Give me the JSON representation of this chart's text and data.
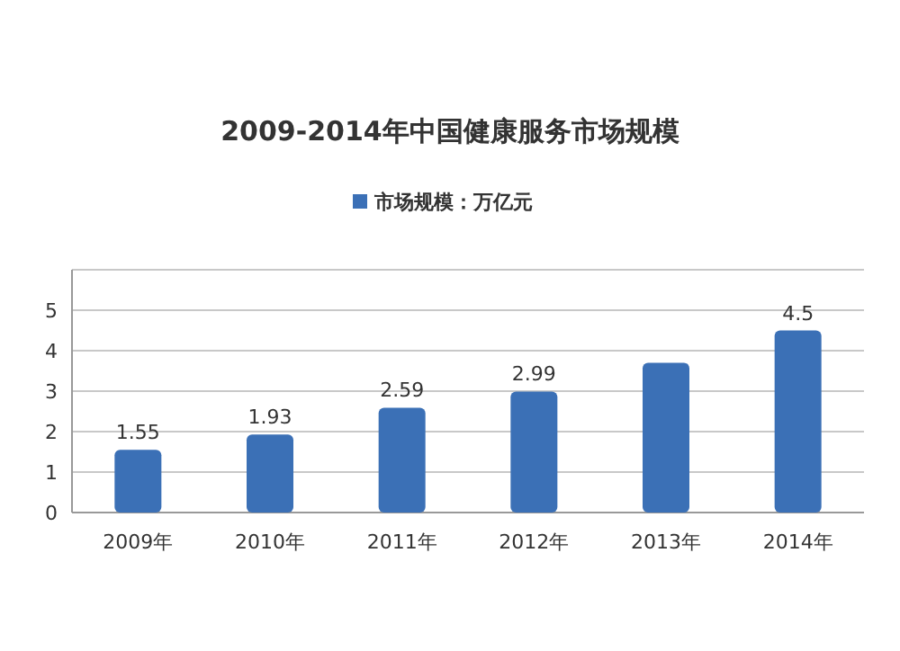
{
  "chart_data": {
    "type": "bar",
    "title": "2009-2014年中国健康服务市场规模",
    "categories": [
      "2009年",
      "2010年",
      "2011年",
      "2012年",
      "2013年",
      "2014年"
    ],
    "series": [
      {
        "name": "市场规模：万亿元",
        "color": "#3b70b6",
        "values": [
          1.55,
          1.93,
          2.59,
          2.99,
          3.7,
          4.5
        ],
        "value_labels": [
          "1.55",
          "1.93",
          "2.59",
          "2.99",
          null,
          "4.5"
        ]
      }
    ],
    "ylim": [
      0,
      6
    ],
    "yticks": [
      0,
      1,
      2,
      3,
      4,
      5
    ],
    "grid": "y",
    "legend": "top"
  }
}
